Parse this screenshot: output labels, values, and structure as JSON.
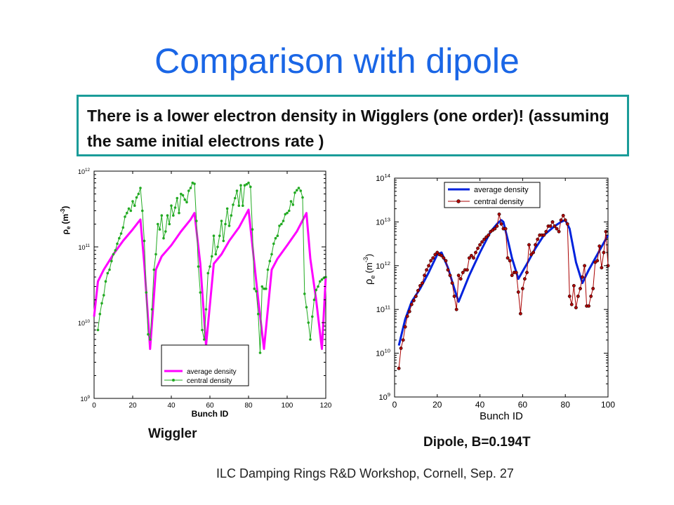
{
  "slide": {
    "title": "Comparison with dipole",
    "callout": "There is a lower electron density in Wigglers (one order)! (assuming the same initial electrons rate )",
    "caption_left": "Wiggler",
    "caption_right": "Dipole, B=0.194T",
    "footer": "ILC Damping Rings R&D Workshop, Cornell, Sep. 27"
  },
  "colors": {
    "title": "#1a66e6",
    "callout_border": "#1a9c99",
    "wiggler_average": "#ff00ff",
    "wiggler_central": "#22aa22",
    "dipole_average": "#0022dd",
    "dipole_central": "#aa0000"
  },
  "chart_data": [
    {
      "type": "line",
      "scale_y": "log",
      "xlabel": "Bunch ID",
      "ylabel_base": "ρ",
      "ylabel_sub": "e",
      "ylabel_unit": "(m",
      "ylabel_exp": "-3",
      "ylabel_close": ")",
      "xlim": [
        0,
        120
      ],
      "ylim": [
        1000000000.0,
        1000000000000.0
      ],
      "x_ticks": [
        "0",
        "20",
        "40",
        "60",
        "80",
        "100",
        "120"
      ],
      "y_ticks": [
        {
          "base": "10",
          "exp": "9"
        },
        {
          "base": "10",
          "exp": "10"
        },
        {
          "base": "10",
          "exp": "11"
        },
        {
          "base": "10",
          "exp": "12"
        }
      ],
      "legend": "bottom-right",
      "series": [
        {
          "name": "average density",
          "x": [
            0,
            2,
            5,
            10,
            15,
            20,
            24,
            26,
            29,
            32,
            35,
            40,
            45,
            50,
            52,
            55,
            58,
            62,
            66,
            70,
            75,
            80,
            83,
            85,
            88,
            92,
            95,
            100,
            105,
            110,
            112,
            115,
            118,
            120
          ],
          "y": [
            12000000000.0,
            35000000000.0,
            50000000000.0,
            80000000000.0,
            120000000000.0,
            170000000000.0,
            230000000000.0,
            60000000000.0,
            4500000000.0,
            50000000000.0,
            75000000000.0,
            105000000000.0,
            160000000000.0,
            230000000000.0,
            280000000000.0,
            60000000000.0,
            5000000000.0,
            60000000000.0,
            80000000000.0,
            120000000000.0,
            180000000000.0,
            310000000000.0,
            60000000000.0,
            20000000000.0,
            4500000000.0,
            50000000000.0,
            70000000000.0,
            105000000000.0,
            160000000000.0,
            280000000000.0,
            70000000000.0,
            20000000000.0,
            4500000000.0,
            40000000000.0
          ]
        },
        {
          "name": "central density",
          "x": [
            2,
            3,
            4,
            5,
            6,
            7,
            8,
            9,
            10,
            11,
            12,
            13,
            14,
            15,
            16,
            17,
            18,
            19,
            20,
            21,
            22,
            23,
            24,
            25,
            26,
            27,
            28,
            29,
            30,
            31,
            32,
            33,
            34,
            35,
            36,
            37,
            38,
            39,
            40,
            41,
            42,
            43,
            44,
            45,
            46,
            47,
            48,
            49,
            50,
            51,
            52,
            53,
            54,
            55,
            56,
            57,
            58,
            59,
            60,
            61,
            62,
            63,
            64,
            65,
            66,
            67,
            68,
            69,
            70,
            71,
            72,
            73,
            74,
            75,
            76,
            77,
            78,
            79,
            80,
            81,
            82,
            83,
            84,
            85,
            86,
            87,
            88,
            89,
            90,
            91,
            92,
            93,
            94,
            95,
            96,
            97,
            98,
            99,
            100,
            101,
            102,
            103,
            104,
            105,
            106,
            107,
            108,
            109,
            110,
            111,
            112,
            113,
            114,
            115,
            116,
            117,
            118,
            119,
            120
          ],
          "y": [
            8000000000.0,
            13000000000.0,
            18000000000.0,
            23000000000.0,
            35000000000.0,
            45000000000.0,
            50000000000.0,
            65000000000.0,
            80000000000.0,
            90000000000.0,
            110000000000.0,
            130000000000.0,
            150000000000.0,
            180000000000.0,
            250000000000.0,
            280000000000.0,
            320000000000.0,
            300000000000.0,
            400000000000.0,
            350000000000.0,
            450000000000.0,
            500000000000.0,
            600000000000.0,
            300000000000.0,
            120000000000.0,
            25000000000.0,
            7000000000.0,
            6000000000.0,
            15000000000.0,
            50000000000.0,
            80000000000.0,
            200000000000.0,
            170000000000.0,
            260000000000.0,
            130000000000.0,
            160000000000.0,
            260000000000.0,
            200000000000.0,
            350000000000.0,
            260000000000.0,
            330000000000.0,
            440000000000.0,
            280000000000.0,
            500000000000.0,
            480000000000.0,
            420000000000.0,
            390000000000.0,
            550000000000.0,
            600000000000.0,
            700000000000.0,
            680000000000.0,
            220000000000.0,
            55000000000.0,
            25000000000.0,
            8000000000.0,
            6000000000.0,
            15000000000.0,
            45000000000.0,
            55000000000.0,
            75000000000.0,
            140000000000.0,
            80000000000.0,
            100000000000.0,
            140000000000.0,
            220000000000.0,
            120000000000.0,
            200000000000.0,
            320000000000.0,
            190000000000.0,
            260000000000.0,
            360000000000.0,
            440000000000.0,
            550000000000.0,
            350000000000.0,
            650000000000.0,
            350000000000.0,
            650000000000.0,
            670000000000.0,
            700000000000.0,
            620000000000.0,
            170000000000.0,
            28000000000.0,
            26000000000.0,
            13000000000.0,
            4000000000.0,
            30000000000.0,
            28000000000.0,
            28000000000.0,
            50000000000.0,
            65000000000.0,
            80000000000.0,
            110000000000.0,
            130000000000.0,
            140000000000.0,
            190000000000.0,
            200000000000.0,
            220000000000.0,
            270000000000.0,
            280000000000.0,
            300000000000.0,
            400000000000.0,
            360000000000.0,
            520000000000.0,
            560000000000.0,
            600000000000.0,
            550000000000.0,
            450000000000.0,
            24000000000.0,
            16000000000.0,
            10000000000.0,
            6000000000.0,
            12000000000.0,
            20000000000.0,
            27000000000.0,
            30000000000.0,
            35000000000.0,
            37000000000.0,
            39000000000.0,
            40000000000.0
          ]
        }
      ]
    },
    {
      "type": "line",
      "scale_y": "log",
      "xlabel": "Bunch ID",
      "ylabel_base": "ρ",
      "ylabel_sub": "e",
      "ylabel_unit": "(m",
      "ylabel_exp": "-3",
      "ylabel_close": ")",
      "xlim": [
        0,
        100
      ],
      "ylim": [
        1000000000.0,
        100000000000000.0
      ],
      "x_ticks": [
        "0",
        "20",
        "40",
        "60",
        "80",
        "100"
      ],
      "y_ticks": [
        {
          "base": "10",
          "exp": "9"
        },
        {
          "base": "10",
          "exp": "10"
        },
        {
          "base": "10",
          "exp": "11"
        },
        {
          "base": "10",
          "exp": "12"
        },
        {
          "base": "10",
          "exp": "13"
        },
        {
          "base": "10",
          "exp": "14"
        }
      ],
      "legend": "top-left",
      "series": [
        {
          "name": "average density",
          "x": [
            2,
            5,
            8,
            12,
            16,
            20,
            22,
            25,
            28,
            30,
            35,
            40,
            45,
            48,
            50,
            51,
            53,
            55,
            58,
            62,
            66,
            70,
            75,
            78,
            80,
            82,
            85,
            88,
            91,
            95,
            100
          ],
          "y": [
            15000000000.0,
            60000000000.0,
            150000000000.0,
            300000000000.0,
            700000000000.0,
            1800000000000.0,
            2000000000000.0,
            900000000000.0,
            300000000000.0,
            150000000000.0,
            600000000000.0,
            2000000000000.0,
            6000000000000.0,
            9000000000000.0,
            11000000000000.0,
            10000000000000.0,
            4000000000000.0,
            1500000000000.0,
            500000000000.0,
            1100000000000.0,
            2500000000000.0,
            5000000000000.0,
            8000000000000.0,
            10000000000000.0,
            11000000000000.0,
            7000000000000.0,
            1200000000000.0,
            400000000000.0,
            800000000000.0,
            1800000000000.0,
            5000000000000.0
          ]
        },
        {
          "name": "central density",
          "x": [
            2,
            3,
            4,
            5,
            6,
            7,
            8,
            9,
            10,
            11,
            12,
            13,
            14,
            15,
            16,
            17,
            18,
            19,
            20,
            21,
            22,
            23,
            24,
            25,
            26,
            27,
            28,
            29,
            30,
            31,
            32,
            33,
            34,
            35,
            36,
            37,
            38,
            39,
            40,
            41,
            42,
            43,
            44,
            45,
            46,
            47,
            48,
            49,
            50,
            51,
            52,
            53,
            54,
            55,
            56,
            57,
            58,
            59,
            60,
            61,
            62,
            63,
            64,
            65,
            66,
            67,
            68,
            69,
            70,
            71,
            72,
            73,
            74,
            75,
            76,
            77,
            78,
            79,
            80,
            81,
            82,
            83,
            84,
            85,
            86,
            87,
            88,
            89,
            90,
            91,
            92,
            93,
            94,
            95,
            96,
            97,
            98,
            99,
            100
          ],
          "y": [
            4500000000.0,
            13000000000.0,
            20000000000.0,
            40000000000.0,
            70000000000.0,
            90000000000.0,
            130000000000.0,
            160000000000.0,
            200000000000.0,
            270000000000.0,
            350000000000.0,
            400000000000.0,
            600000000000.0,
            800000000000.0,
            1000000000000.0,
            1300000000000.0,
            1500000000000.0,
            1800000000000.0,
            2000000000000.0,
            1800000000000.0,
            1700000000000.0,
            1500000000000.0,
            1300000000000.0,
            800000000000.0,
            600000000000.0,
            400000000000.0,
            200000000000.0,
            100000000000.0,
            600000000000.0,
            500000000000.0,
            700000000000.0,
            800000000000.0,
            800000000000.0,
            1500000000000.0,
            1700000000000.0,
            1500000000000.0,
            2000000000000.0,
            2500000000000.0,
            3000000000000.0,
            3500000000000.0,
            4000000000000.0,
            4500000000000.0,
            5000000000000.0,
            6000000000000.0,
            6500000000000.0,
            7000000000000.0,
            8000000000000.0,
            15000000000000.0,
            9000000000000.0,
            7000000000000.0,
            7000000000000.0,
            1500000000000.0,
            1300000000000.0,
            600000000000.0,
            700000000000.0,
            700000000000.0,
            250000000000.0,
            80000000000.0,
            300000000000.0,
            500000000000.0,
            700000000000.0,
            3000000000000.0,
            1800000000000.0,
            2000000000000.0,
            3000000000000.0,
            4000000000000.0,
            5000000000000.0,
            5000000000000.0,
            5000000000000.0,
            6000000000000.0,
            8000000000000.0,
            8000000000000.0,
            10000000000000.0,
            8000000000000.0,
            7000000000000.0,
            6000000000000.0,
            11000000000000.0,
            14000000000000.0,
            11000000000000.0,
            9000000000000.0,
            200000000000.0,
            130000000000.0,
            350000000000.0,
            110000000000.0,
            200000000000.0,
            300000000000.0,
            550000000000.0,
            1000000000000.0,
            120000000000.0,
            120000000000.0,
            200000000000.0,
            300000000000.0,
            1200000000000.0,
            1300000000000.0,
            2800000000000.0,
            900000000000.0,
            2000000000000.0,
            6000000000000.0,
            1000000000000.0
          ]
        }
      ]
    }
  ]
}
